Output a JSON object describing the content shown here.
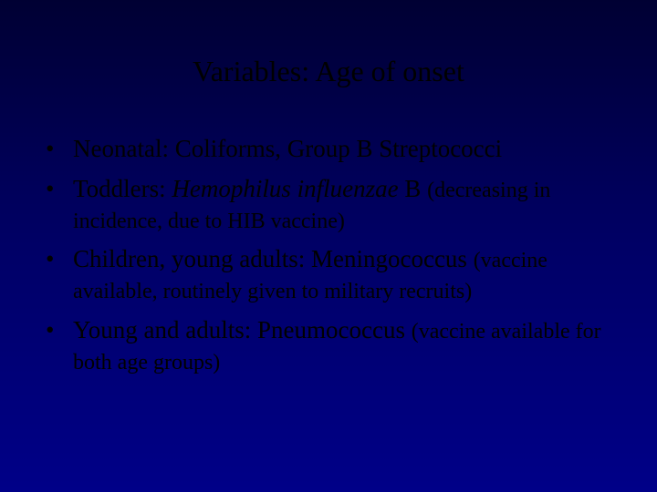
{
  "title_text": "Variables: Age of onset",
  "text_color": "#000000",
  "background_gradient": [
    "#000033",
    "#000066",
    "#000088"
  ],
  "title_fontsize": 32,
  "body_fontsize": 27,
  "sub_fontsize": 24,
  "bullets": [
    {
      "prefix": "Neonatal: Coliforms, Group B Streptococci",
      "italic": "",
      "suffix_big": "",
      "sub": ""
    },
    {
      "prefix": "Toddlers: ",
      "italic": "Hemophilus influenzae",
      "suffix_big": " B ",
      "sub": "(decreasing in incidence, due to HIB vaccine)"
    },
    {
      "prefix": "Children, young adults: Meningococcus ",
      "italic": "",
      "suffix_big": "",
      "sub": "(vaccine available, routinely given to military recruits)"
    },
    {
      "prefix": "Young and adults: Pneumococcus ",
      "italic": "",
      "suffix_big": "",
      "sub": "(vaccine available for both age groups)"
    }
  ]
}
